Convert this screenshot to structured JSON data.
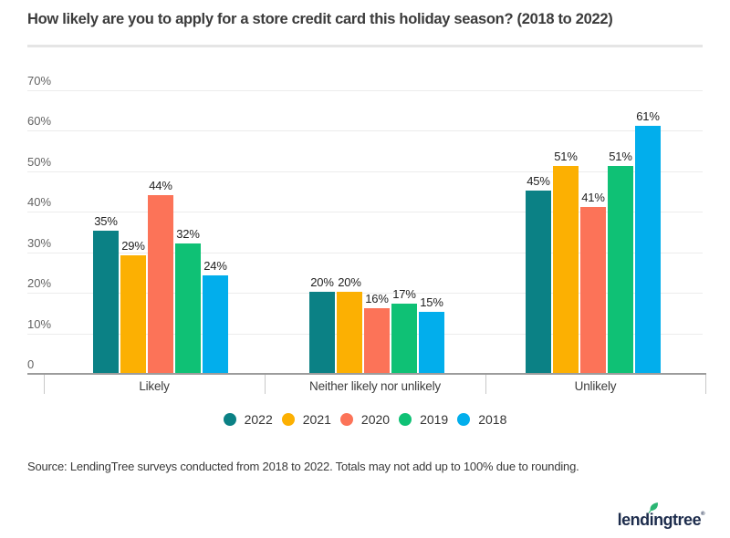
{
  "chart_data": {
    "type": "bar",
    "title": "How likely are you to apply for a store credit card this holiday season? (2018 to 2022)",
    "categories": [
      "Likely",
      "Neither likely nor unlikely",
      "Unlikely"
    ],
    "series": [
      {
        "name": "2022",
        "color": "#0b8185",
        "values": [
          35,
          20,
          45
        ]
      },
      {
        "name": "2021",
        "color": "#fcb002",
        "values": [
          29,
          20,
          51
        ]
      },
      {
        "name": "2020",
        "color": "#fc7358",
        "values": [
          44,
          16,
          41
        ]
      },
      {
        "name": "2019",
        "color": "#0fc175",
        "values": [
          32,
          17,
          51
        ]
      },
      {
        "name": "2018",
        "color": "#02aeec",
        "values": [
          24,
          15,
          61
        ]
      }
    ],
    "unit": "%",
    "xlabel": "",
    "ylabel": "",
    "ylim": [
      0,
      70
    ],
    "y_ticks": [
      "70%",
      "60%",
      "50%",
      "40%",
      "30%",
      "20%",
      "10%",
      "0"
    ],
    "grid": true,
    "legend_position": "bottom",
    "value_labels": true
  },
  "source_note": "Source: LendingTree surveys conducted from 2018 to 2022. Totals may not add up to 100% due to rounding.",
  "logo": {
    "text": "lendingtree",
    "reg": "®",
    "text_color": "#1d2c4c",
    "leaf_color": "#2bb673"
  }
}
